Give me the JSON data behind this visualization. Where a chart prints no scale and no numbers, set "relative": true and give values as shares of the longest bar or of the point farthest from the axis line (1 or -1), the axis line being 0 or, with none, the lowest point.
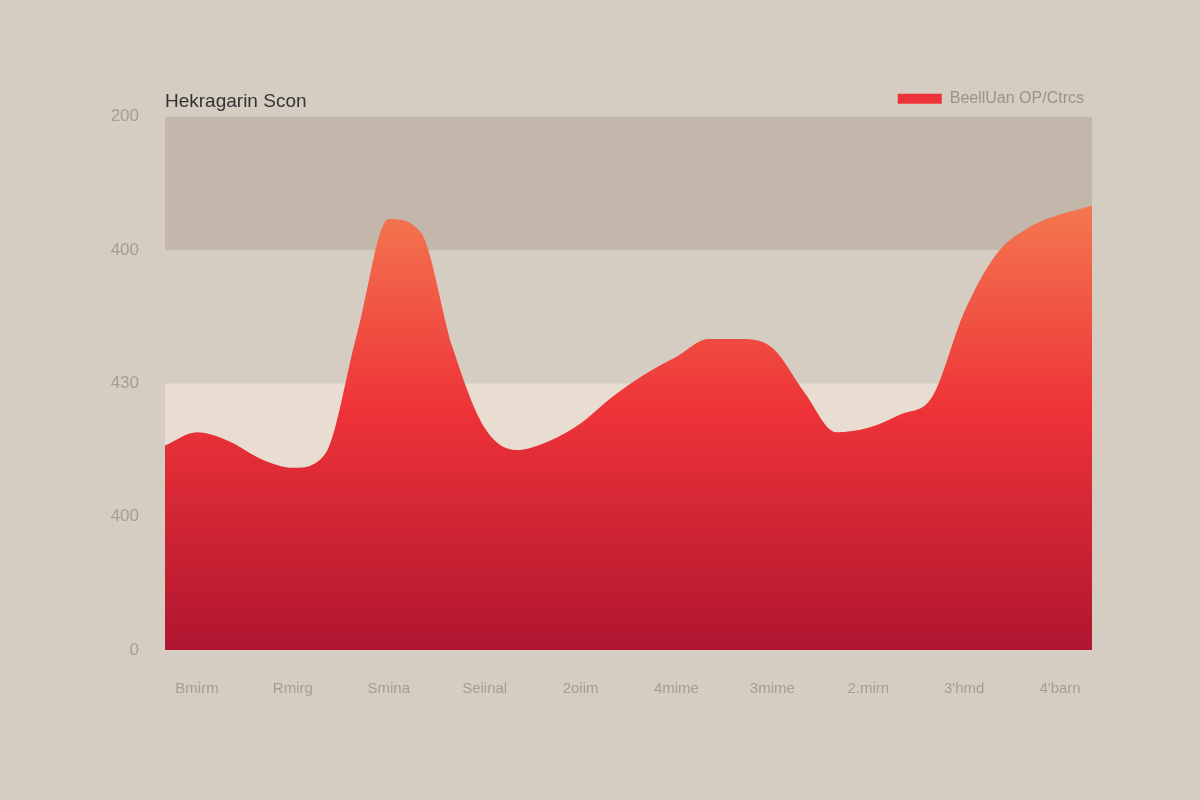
{
  "chart_data": {
    "type": "area",
    "title": "Hekragarin Scon",
    "legend": "top right",
    "relative": true,
    "categories": [
      null,
      "Bmirm",
      null,
      null,
      "Rmirg",
      null,
      null,
      "Smina",
      null,
      null,
      "Seiinal",
      null,
      null,
      "2oiim",
      null,
      null,
      "4mime",
      null,
      null,
      "3mime",
      null,
      null,
      "2.mirn",
      null,
      null,
      "3'hmd",
      null,
      null,
      "4'barn",
      null
    ],
    "grid": false,
    "annotations": [
      "200",
      "400",
      "430",
      "400",
      "0"
    ],
    "bands": [
      {
        "axis": "y",
        "from": 0.9,
        "to": 1.2,
        "color": "#c2b7aa"
      },
      {
        "axis": "y",
        "from": 0,
        "to": 0.6,
        "color": "#e8ddd0"
      }
    ],
    "series": [
      {
        "name": "BeellUan OP/Ctrcs",
        "color": "#ee3338",
        "values": [
          0.46,
          0.49,
          0.47,
          0.43,
          0.41,
          0.44,
          0.71,
          0.97,
          0.94,
          0.68,
          0.5,
          0.45,
          0.47,
          0.51,
          0.57,
          0.62,
          0.66,
          0.7,
          0.7,
          0.68,
          0.58,
          0.49,
          0.5,
          0.53,
          0.57,
          0.76,
          0.89,
          0.95,
          0.98,
          1
        ]
      }
    ]
  }
}
